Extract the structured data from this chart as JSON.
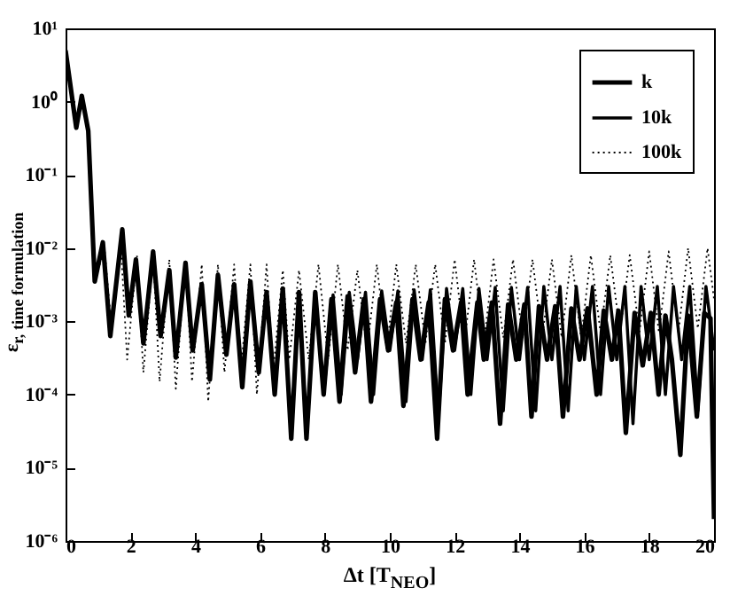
{
  "chart_data": {
    "type": "line",
    "xlabel": "Δt [T$_{NEO}$]",
    "ylabel": "ε$_{r, time formulation}$",
    "xlim": [
      0,
      20
    ],
    "xticks": [
      0,
      2,
      4,
      6,
      8,
      10,
      12,
      14,
      16,
      18,
      20
    ],
    "ylim": [
      1e-06,
      10
    ],
    "log": "y",
    "yticks": [
      {
        "value": 1e-06,
        "label": "10⁻⁶"
      },
      {
        "value": 1e-05,
        "label": "10⁻⁵"
      },
      {
        "value": 0.0001,
        "label": "10⁻⁴"
      },
      {
        "value": 0.001,
        "label": "10⁻³"
      },
      {
        "value": 0.01,
        "label": "10⁻²"
      },
      {
        "value": 0.1,
        "label": "10⁻¹"
      },
      {
        "value": 1,
        "label": "10⁰"
      },
      {
        "value": 10,
        "label": "10¹"
      }
    ],
    "grid": false,
    "legend": "top right",
    "marker": "none",
    "series": [
      {
        "name": "k",
        "color": "#000000",
        "line_style": "solid",
        "x": [
          0,
          0.33,
          0.5,
          0.7,
          0.9,
          1.15,
          1.38,
          1.75,
          1.95,
          2.17,
          2.4,
          2.7,
          2.93,
          3.2,
          3.4,
          3.7,
          3.92,
          4.2,
          4.45,
          4.7,
          4.96,
          5.2,
          5.45,
          5.7,
          5.96,
          6.2,
          6.45,
          6.7,
          6.96,
          7.2,
          7.43,
          7.7,
          7.96,
          8.2,
          8.45,
          8.7,
          8.93,
          9.2,
          9.42,
          9.7,
          9.95,
          10.2,
          10.42,
          10.7,
          10.95,
          11.2,
          11.46,
          11.7,
          11.95,
          12.2,
          12.4,
          12.7,
          12.9,
          13.15,
          13.4,
          13.65,
          13.9,
          14.15,
          14.37,
          14.6,
          14.85,
          15.1,
          15.34,
          15.6,
          15.85,
          16.1,
          16.38,
          16.6,
          16.85,
          17.05,
          17.28,
          17.55,
          17.8,
          18.05,
          18.29,
          18.5,
          18.7,
          18.96,
          19.2,
          19.47,
          19.7,
          19.89,
          20
        ],
        "values": [
          5,
          0.44,
          1.2,
          0.4,
          0.0035,
          0.012,
          0.00063,
          0.018,
          0.0012,
          0.007,
          0.0005,
          0.009,
          0.00063,
          0.005,
          0.00032,
          0.0063,
          0.0004,
          0.0032,
          0.00016,
          0.0043,
          0.00035,
          0.0032,
          0.000126,
          0.0035,
          0.0002,
          0.0025,
          0.0001,
          0.0028,
          2.5e-05,
          0.0025,
          2.5e-05,
          0.0025,
          0.0001,
          0.002,
          8e-05,
          0.0022,
          0.0002,
          0.002,
          8e-05,
          0.002,
          0.0004,
          0.0018,
          7e-05,
          0.002,
          0.0003,
          0.0018,
          2.5e-05,
          0.002,
          0.0004,
          0.0018,
          0.0001,
          0.0018,
          0.0003,
          0.0018,
          4e-05,
          0.0017,
          0.0003,
          0.0017,
          5e-05,
          0.0016,
          0.0003,
          0.0016,
          5e-05,
          0.0015,
          0.0003,
          0.0015,
          0.0001,
          0.0014,
          0.0003,
          0.0014,
          3e-05,
          0.0013,
          0.00025,
          0.0013,
          0.0001,
          0.0012,
          0.0003,
          1.5e-05,
          0.0012,
          5e-05,
          0.0013,
          0.0011,
          2e-06
        ]
      },
      {
        "name": "10k",
        "color": "#000000",
        "line_style": "solid",
        "x": [
          0,
          0.33,
          0.5,
          0.7,
          0.9,
          1.15,
          1.38,
          1.75,
          1.95,
          2.17,
          2.4,
          2.7,
          2.93,
          3.2,
          3.4,
          3.7,
          3.92,
          4.2,
          4.45,
          4.7,
          4.96,
          5.2,
          5.45,
          5.7,
          5.96,
          6.2,
          6.45,
          6.7,
          6.96,
          7.2,
          7.43,
          7.7,
          7.96,
          8.25,
          8.5,
          8.75,
          9,
          9.25,
          9.5,
          9.75,
          10,
          10.25,
          10.5,
          10.75,
          11,
          11.25,
          11.5,
          11.75,
          12,
          12.25,
          12.5,
          12.75,
          13,
          13.25,
          13.5,
          13.75,
          14,
          14.25,
          14.5,
          14.75,
          15,
          15.25,
          15.5,
          15.75,
          16,
          16.25,
          16.5,
          16.75,
          17,
          17.25,
          17.5,
          17.75,
          18,
          18.25,
          18.5,
          18.75,
          19,
          19.25,
          19.5,
          19.75,
          20
        ],
        "values": [
          5,
          0.44,
          1.2,
          0.4,
          0.0035,
          0.012,
          0.00063,
          0.018,
          0.0012,
          0.007,
          0.0005,
          0.009,
          0.00063,
          0.005,
          0.00032,
          0.0063,
          0.0004,
          0.0032,
          0.00016,
          0.0043,
          0.00035,
          0.0032,
          0.000126,
          0.0035,
          0.0002,
          0.0025,
          0.0001,
          0.0028,
          2.5e-05,
          0.0025,
          2.5e-05,
          0.0025,
          0.0001,
          0.0023,
          0.0001,
          0.0025,
          0.0003,
          0.0025,
          0.0001,
          0.0026,
          0.0004,
          0.0026,
          8e-05,
          0.0027,
          0.0003,
          0.0027,
          5e-05,
          0.0028,
          0.0004,
          0.0028,
          0.0001,
          0.0028,
          0.0003,
          0.0029,
          6e-05,
          0.0029,
          0.0003,
          0.0029,
          6e-05,
          0.003,
          0.0003,
          0.003,
          6e-05,
          0.003,
          0.0003,
          0.003,
          0.0001,
          0.003,
          0.0003,
          0.003,
          4e-05,
          0.003,
          0.0003,
          0.003,
          0.0001,
          0.003,
          0.0003,
          0.003,
          6e-05,
          0.003,
          0.0004
        ]
      },
      {
        "name": "100k",
        "color": "#000000",
        "line_style": "dotted",
        "x": [
          0,
          0.33,
          0.5,
          0.7,
          0.9,
          1.2,
          1.4,
          1.7,
          1.9,
          2.2,
          2.4,
          2.7,
          2.9,
          3.2,
          3.4,
          3.7,
          3.9,
          4.2,
          4.4,
          4.7,
          4.9,
          5.2,
          5.4,
          5.7,
          5.9,
          6.2,
          6.4,
          6.7,
          6.9,
          7.2,
          7.5,
          7.8,
          8.1,
          8.4,
          8.7,
          9,
          9.3,
          9.6,
          9.9,
          10.2,
          10.5,
          10.8,
          11.1,
          11.4,
          11.7,
          12,
          12.3,
          12.6,
          12.9,
          13.2,
          13.5,
          13.8,
          14.1,
          14.4,
          14.7,
          15,
          15.3,
          15.6,
          15.9,
          16.2,
          16.5,
          16.8,
          17.1,
          17.4,
          17.7,
          18,
          18.3,
          18.6,
          18.9,
          19.2,
          19.5,
          19.8,
          20
        ],
        "values": [
          5,
          0.44,
          1.2,
          0.4,
          0.0035,
          0.01,
          0.001,
          0.012,
          0.0003,
          0.008,
          0.0002,
          0.008,
          0.00015,
          0.007,
          0.00012,
          0.007,
          0.00015,
          0.006,
          8e-05,
          0.006,
          0.0002,
          0.006,
          0.0002,
          0.006,
          0.0001,
          0.006,
          0.0002,
          0.005,
          0.0003,
          0.005,
          0.0003,
          0.006,
          0.0003,
          0.006,
          0.0004,
          0.005,
          0.0004,
          0.006,
          0.0004,
          0.006,
          0.0005,
          0.006,
          0.0005,
          0.006,
          0.0005,
          0.007,
          0.0005,
          0.007,
          0.0005,
          0.007,
          0.0006,
          0.007,
          0.0006,
          0.007,
          0.0006,
          0.007,
          0.0006,
          0.008,
          0.0006,
          0.008,
          0.0007,
          0.008,
          0.0007,
          0.008,
          0.0007,
          0.009,
          0.0007,
          0.009,
          0.0007,
          0.01,
          0.0008,
          0.01,
          0.002
        ]
      }
    ]
  }
}
